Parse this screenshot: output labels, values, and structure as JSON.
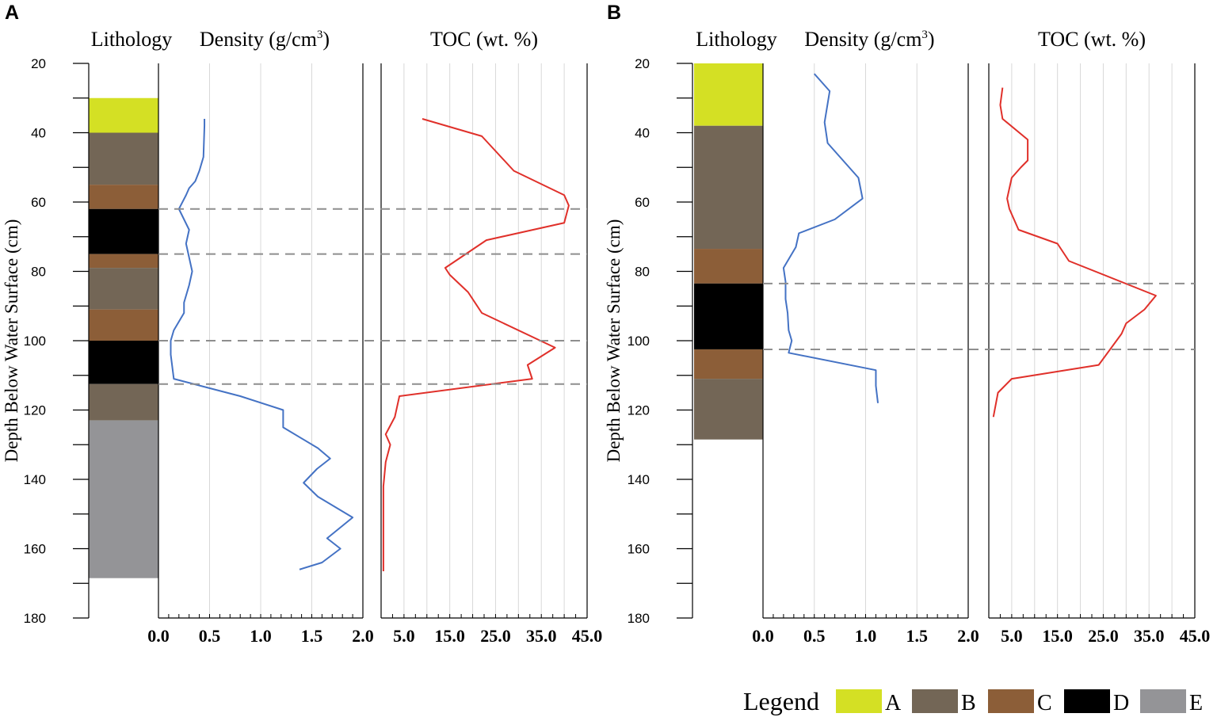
{
  "chart_data": [
    {
      "type": "line",
      "panel": "A",
      "ylabel": "Depth Below Water Surface (cm)",
      "ylim": [
        20,
        180
      ],
      "yticks": [
        20,
        40,
        60,
        80,
        100,
        120,
        140,
        160,
        180
      ],
      "lithology": {
        "title": "Lithology",
        "layers": [
          {
            "top": 30,
            "bottom": 40,
            "unit": "A"
          },
          {
            "top": 40,
            "bottom": 55,
            "unit": "B"
          },
          {
            "top": 55,
            "bottom": 62,
            "unit": "C"
          },
          {
            "top": 62,
            "bottom": 75,
            "unit": "D"
          },
          {
            "top": 75,
            "bottom": 79,
            "unit": "C"
          },
          {
            "top": 79,
            "bottom": 91,
            "unit": "B"
          },
          {
            "top": 91,
            "bottom": 100,
            "unit": "C"
          },
          {
            "top": 100,
            "bottom": 112.5,
            "unit": "D"
          },
          {
            "top": 112.5,
            "bottom": 123,
            "unit": "B"
          },
          {
            "top": 123,
            "bottom": 168.5,
            "unit": "E"
          }
        ]
      },
      "density": {
        "title": "Density (g/cm³)",
        "title_main": "Density (g/cm",
        "title_sup": "3",
        "title_end": ")",
        "xlim": [
          0,
          2.0
        ],
        "xticks": [
          0,
          0.5,
          1.0,
          1.5,
          2.0
        ],
        "xtick_labels": [
          "0.0",
          "0.5",
          "1.0",
          "1.5",
          "2.0"
        ],
        "color": "#4472C4",
        "depth": [
          36,
          38,
          47,
          51,
          54,
          56,
          58,
          62,
          68,
          72,
          80,
          84,
          89,
          92,
          97,
          100,
          104,
          111,
          116,
          120,
          125,
          131,
          134,
          137,
          141,
          145,
          151,
          157,
          160,
          164,
          166
        ],
        "values": [
          0.45,
          0.45,
          0.44,
          0.4,
          0.36,
          0.3,
          0.27,
          0.2,
          0.3,
          0.27,
          0.33,
          0.3,
          0.25,
          0.25,
          0.15,
          0.12,
          0.12,
          0.15,
          0.8,
          1.22,
          1.22,
          1.56,
          1.68,
          1.55,
          1.42,
          1.56,
          1.9,
          1.65,
          1.78,
          1.6,
          1.38
        ]
      },
      "toc": {
        "title": "TOC (wt. %)",
        "xlim": [
          0,
          45.0
        ],
        "xticks": [
          5,
          15,
          25,
          35,
          45
        ],
        "xtick_labels": [
          "5.0",
          "15.0",
          "25.0",
          "35.0",
          "45.0"
        ],
        "color": "#E0302A",
        "depth": [
          36,
          41,
          51,
          58,
          61,
          66,
          71,
          79,
          81,
          86,
          92,
          102,
          107,
          111,
          116,
          122,
          127,
          130,
          135,
          142,
          152,
          160,
          166.5
        ],
        "values": [
          9,
          22,
          29,
          40,
          41,
          40,
          23,
          14,
          15,
          19,
          22,
          38,
          32,
          33,
          4,
          3,
          1,
          2,
          1,
          0.5,
          0.5,
          0.5,
          0.5
        ]
      },
      "boundaries": [
        62,
        75,
        100,
        112.5
      ]
    },
    {
      "type": "line",
      "panel": "B",
      "ylabel": "Depth Below Water Surface (cm)",
      "ylim": [
        20,
        180
      ],
      "yticks": [
        20,
        40,
        60,
        80,
        100,
        120,
        140,
        160,
        180
      ],
      "lithology": {
        "title": "Lithology",
        "layers": [
          {
            "top": 20,
            "bottom": 38,
            "unit": "A"
          },
          {
            "top": 38,
            "bottom": 73.5,
            "unit": "B"
          },
          {
            "top": 73.5,
            "bottom": 83.5,
            "unit": "C"
          },
          {
            "top": 83.5,
            "bottom": 102.5,
            "unit": "D"
          },
          {
            "top": 102.5,
            "bottom": 111,
            "unit": "C"
          },
          {
            "top": 111,
            "bottom": 128.5,
            "unit": "B"
          }
        ]
      },
      "density": {
        "title": "Density (g/cm³)",
        "title_main": "Density (g/cm",
        "title_sup": "3",
        "title_end": ")",
        "xlim": [
          0,
          2.0
        ],
        "xticks": [
          0,
          0.5,
          1.0,
          1.5,
          2.0
        ],
        "xtick_labels": [
          "0.0",
          "0.5",
          "1.0",
          "1.5",
          "2.0"
        ],
        "color": "#4472C4",
        "depth": [
          23,
          28,
          37,
          43,
          53,
          59,
          65,
          69,
          73,
          79,
          83,
          88,
          92,
          97,
          100,
          103.5,
          108.5,
          113,
          118
        ],
        "values": [
          0.5,
          0.65,
          0.6,
          0.63,
          0.93,
          0.97,
          0.7,
          0.35,
          0.32,
          0.2,
          0.22,
          0.22,
          0.24,
          0.25,
          0.28,
          0.25,
          1.1,
          1.1,
          1.12
        ]
      },
      "toc": {
        "title": "TOC (wt. %)",
        "xlim": [
          0,
          45.0
        ],
        "xticks": [
          5,
          15,
          25,
          35,
          45
        ],
        "xtick_labels": [
          "5.0",
          "15.0",
          "25.0",
          "35.0",
          "45.0"
        ],
        "color": "#E0302A",
        "depth": [
          27,
          32,
          36,
          42,
          48,
          50,
          53,
          59,
          62,
          68,
          72,
          77,
          87,
          91,
          95,
          98,
          107,
          111,
          115,
          122
        ],
        "values": [
          3,
          2.5,
          3,
          8.5,
          8.5,
          7,
          5,
          4,
          4.5,
          6.5,
          15,
          17.5,
          36.5,
          34,
          30,
          29,
          24,
          5,
          2,
          1
        ]
      },
      "boundaries": [
        83.5,
        102.5
      ]
    }
  ],
  "legend": {
    "title": "Legend",
    "items": [
      {
        "label": "A",
        "color": "#D4E024"
      },
      {
        "label": "B",
        "color": "#736656"
      },
      {
        "label": "C",
        "color": "#8C5E38"
      },
      {
        "label": "D",
        "color": "#000000"
      },
      {
        "label": "E",
        "color": "#949497"
      }
    ]
  },
  "colors": {
    "grid": "#D8D8D8",
    "boundary": "#8E8E8E",
    "axis": "#000000"
  }
}
